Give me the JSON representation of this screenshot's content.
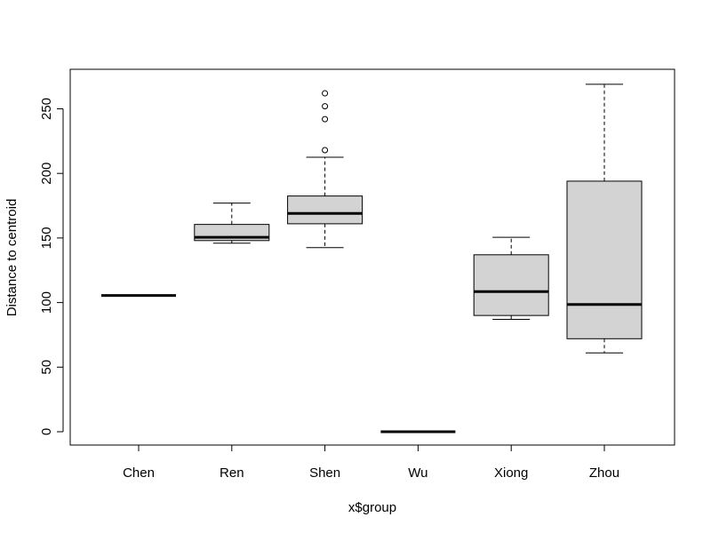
{
  "chart_data": {
    "type": "boxplot",
    "title": "",
    "xlabel": "x$group",
    "ylabel": "Distance to centroid",
    "ylim": [
      -10,
      275
    ],
    "yticks": [
      0,
      50,
      100,
      150,
      200,
      250
    ],
    "grid": false,
    "categories": [
      "Chen",
      "Ren",
      "Shen",
      "Wu",
      "Xiong",
      "Zhou"
    ],
    "boxes": [
      {
        "group": "Chen",
        "whisker_low": 105.5,
        "q1": 105.5,
        "median": 105.5,
        "q3": 105.5,
        "whisker_high": 105.5,
        "outliers": []
      },
      {
        "group": "Ren",
        "whisker_low": 146,
        "q1": 148,
        "median": 150.5,
        "q3": 160.5,
        "whisker_high": 177,
        "outliers": []
      },
      {
        "group": "Shen",
        "whisker_low": 142.5,
        "q1": 161,
        "median": 169,
        "q3": 182.5,
        "whisker_high": 212.5,
        "outliers": [
          218,
          242,
          252,
          262
        ]
      },
      {
        "group": "Wu",
        "whisker_low": 0,
        "q1": 0,
        "median": 0,
        "q3": 0,
        "whisker_high": 0,
        "outliers": []
      },
      {
        "group": "Xiong",
        "whisker_low": 87,
        "q1": 90,
        "median": 108.5,
        "q3": 137,
        "whisker_high": 150.5,
        "outliers": []
      },
      {
        "group": "Zhou",
        "whisker_low": 61,
        "q1": 72,
        "median": 98.5,
        "q3": 194,
        "whisker_high": 269,
        "outliers": []
      }
    ],
    "box_fill": "#d3d3d3",
    "line_color": "#000000"
  }
}
